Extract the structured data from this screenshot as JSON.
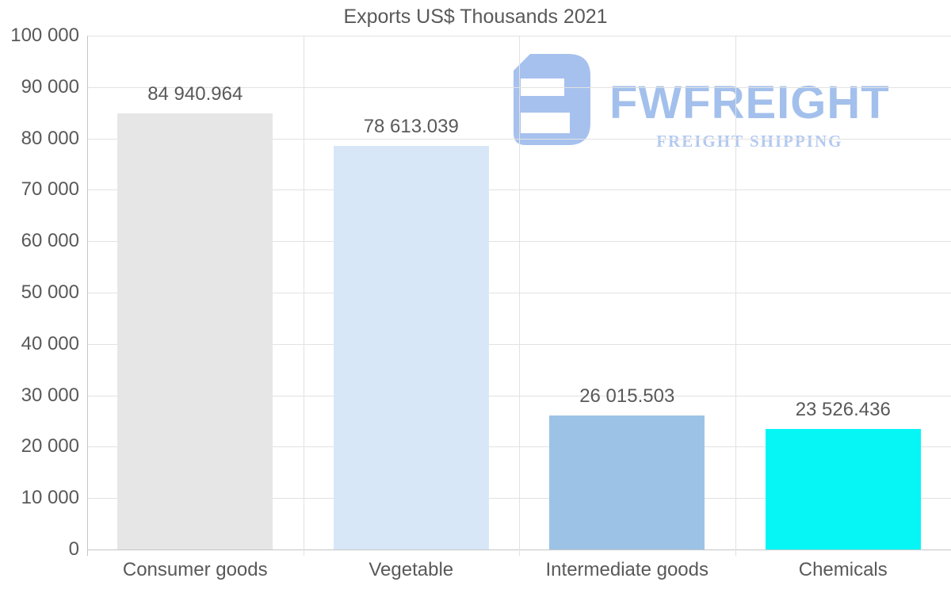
{
  "title": "Exports US$ Thousands 2021",
  "watermark": {
    "brand": "FWFREIGHT",
    "tagline": "FREIGHT SHIPPING",
    "mark_color": "#a6c1ee",
    "brand_color": "#a3c0ec",
    "tagline_color": "#b3c9f0"
  },
  "colors": {
    "text": "#595959",
    "grid": "#e2e2e2",
    "axis": "#c6c6c6",
    "background": "#ffffff"
  },
  "chart_data": {
    "type": "bar",
    "title": "Exports US$ Thousands 2021",
    "categories": [
      "Consumer goods",
      "Vegetable",
      "Intermediate goods",
      "Chemicals"
    ],
    "values": [
      84940.964,
      78613.039,
      26015.503,
      23526.436
    ],
    "value_labels": [
      "84 940.964",
      "78 613.039",
      "26 015.503",
      "23 526.436"
    ],
    "bar_colors": [
      "#e6e6e6",
      "#d8e7f8",
      "#9cc3e6",
      "#06f6f6"
    ],
    "xlabel": "",
    "ylabel": "",
    "ylim": [
      0,
      100000
    ],
    "ytick_step": 10000,
    "ytick_labels": [
      "0",
      "10 000",
      "20 000",
      "30 000",
      "40 000",
      "50 000",
      "60 000",
      "70 000",
      "80 000",
      "90 000",
      "100 000"
    ],
    "grid": true,
    "legend_position": "none"
  }
}
